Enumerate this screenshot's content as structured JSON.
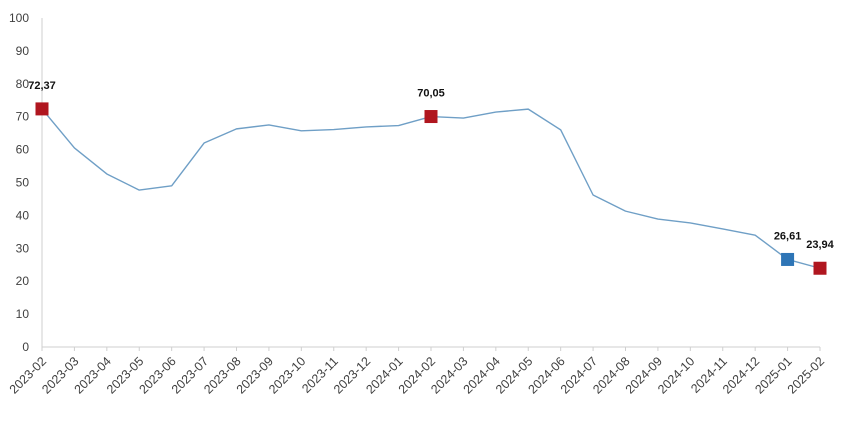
{
  "chart_data": {
    "type": "line",
    "categories": [
      "2023-02",
      "2023-03",
      "2023-04",
      "2023-05",
      "2023-06",
      "2023-07",
      "2023-08",
      "2023-09",
      "2023-10",
      "2023-11",
      "2023-12",
      "2024-01",
      "2024-02",
      "2024-03",
      "2024-04",
      "2024-05",
      "2024-06",
      "2024-07",
      "2024-08",
      "2024-09",
      "2024-10",
      "2024-11",
      "2024-12",
      "2025-01",
      "2025-02"
    ],
    "series": [
      {
        "values": [
          72.37,
          60.5,
          52.6,
          47.7,
          49.0,
          62.0,
          66.3,
          67.5,
          65.7,
          66.1,
          66.9,
          67.3,
          70.05,
          69.6,
          71.4,
          72.3,
          66.0,
          46.2,
          41.3,
          38.9,
          37.7,
          35.9,
          34.0,
          26.61,
          23.94
        ]
      }
    ],
    "ylim": [
      0,
      100
    ],
    "yticks": [
      0,
      10,
      20,
      30,
      40,
      50,
      60,
      70,
      80,
      90,
      100
    ],
    "grid": false,
    "data_labels": [
      {
        "category": "2023-02",
        "text": "72,37",
        "marker_color": "#b0161f"
      },
      {
        "category": "2024-02",
        "text": "70,05",
        "marker_color": "#b0161f"
      },
      {
        "category": "2025-01",
        "text": "26,61",
        "marker_color": "#2e75b6"
      },
      {
        "category": "2025-02",
        "text": "23,94",
        "marker_color": "#b0161f"
      }
    ],
    "colors": {
      "line": "#6f9fc6",
      "axis": "#cfcfcf"
    }
  }
}
